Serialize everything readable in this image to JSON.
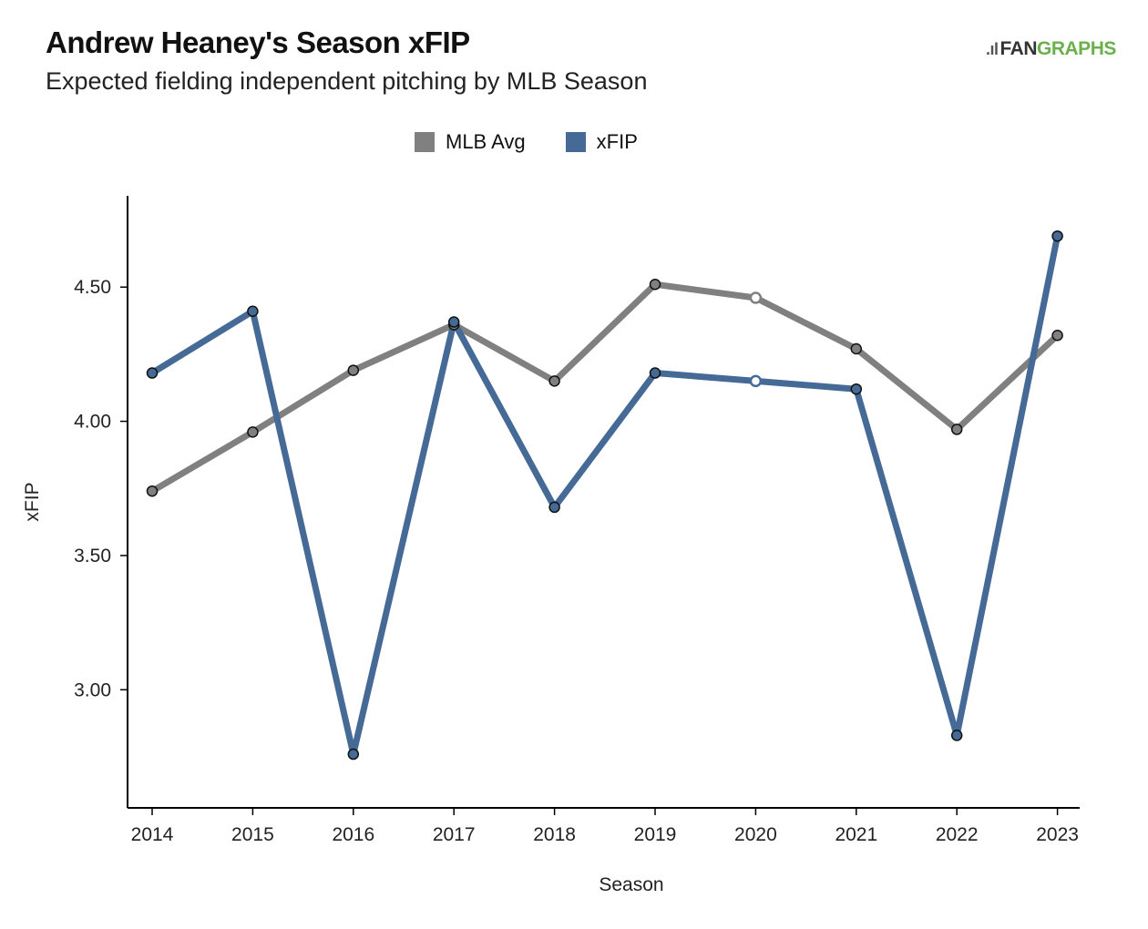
{
  "header": {
    "title": "Andrew Heaney's Season xFIP",
    "subtitle": "Expected fielding independent pitching by MLB Season"
  },
  "logo": {
    "mark": ".ıl",
    "fan": "FAN",
    "graphs": "GRAPHS"
  },
  "colors": {
    "mlb_avg": "#808080",
    "xfip": "#456a96",
    "axis": "#000000",
    "logo_green": "#6ab04c"
  },
  "chart_data": {
    "type": "line",
    "title": "Andrew Heaney's Season xFIP",
    "subtitle": "Expected fielding independent pitching by MLB Season",
    "xlabel": "Season",
    "ylabel": "xFIP",
    "x": [
      "2014",
      "2015",
      "2016",
      "2017",
      "2018",
      "2019",
      "2020",
      "2021",
      "2022",
      "2023"
    ],
    "ylim": [
      2.56,
      4.84
    ],
    "yticks": [
      3.0,
      3.5,
      4.0,
      4.5
    ],
    "ytick_labels": [
      "3.00",
      "3.50",
      "4.00",
      "4.50"
    ],
    "grid": false,
    "legend_position": "top-center",
    "series": [
      {
        "name": "MLB Avg",
        "color": "#808080",
        "values": [
          3.74,
          3.96,
          4.19,
          4.36,
          4.15,
          4.51,
          4.46,
          4.27,
          3.97,
          4.32
        ]
      },
      {
        "name": "xFIP",
        "color": "#456a96",
        "values": [
          4.18,
          4.41,
          2.76,
          4.37,
          3.68,
          4.18,
          4.15,
          4.12,
          2.83,
          4.69
        ]
      }
    ],
    "highlight_hollow_index": 6
  }
}
